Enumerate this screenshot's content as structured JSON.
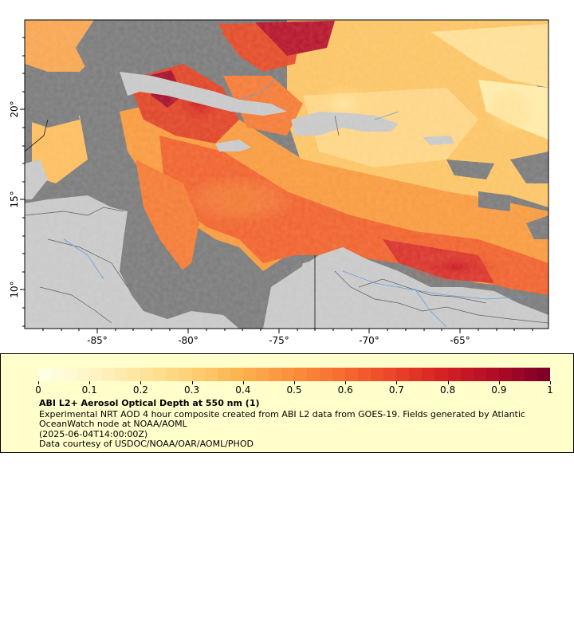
{
  "map": {
    "lon_labels": [
      "-85°",
      "-80°",
      "-75°",
      "-70°",
      "-65°"
    ],
    "lat_labels": [
      "20°",
      "15°",
      "10°"
    ],
    "colors": {
      "ocean_nodata": "#7a7a7a",
      "land": "#c8c8c8",
      "borders": "#555555",
      "rivers": "#5d9ad6"
    }
  },
  "legend": {
    "title": "ABI L2+ Aerosol Optical Depth at 550 nm (1)",
    "description": "Experimental NRT AOD 4 hour composite created from ABI L2 data from GOES-19. Fields generated by Atlantic OceanWatch node at NOAA/AOML",
    "timestamp": "(2025-06-04T14:00:00Z)",
    "credit": "Data courtesy of USDOC/NOAA/OAR/AOML/PHOD",
    "tick_labels": [
      "0",
      "0.1",
      "0.2",
      "0.3",
      "0.4",
      "0.5",
      "0.6",
      "0.7",
      "0.8",
      "0.9",
      "1"
    ],
    "colorbar_colors": [
      "#ffffe6",
      "#fff3c4",
      "#fee39a",
      "#fece70",
      "#fdb04e",
      "#fc8d3c",
      "#f76a30",
      "#ea4427",
      "#d42022",
      "#b10c26",
      "#7f0027"
    ]
  }
}
